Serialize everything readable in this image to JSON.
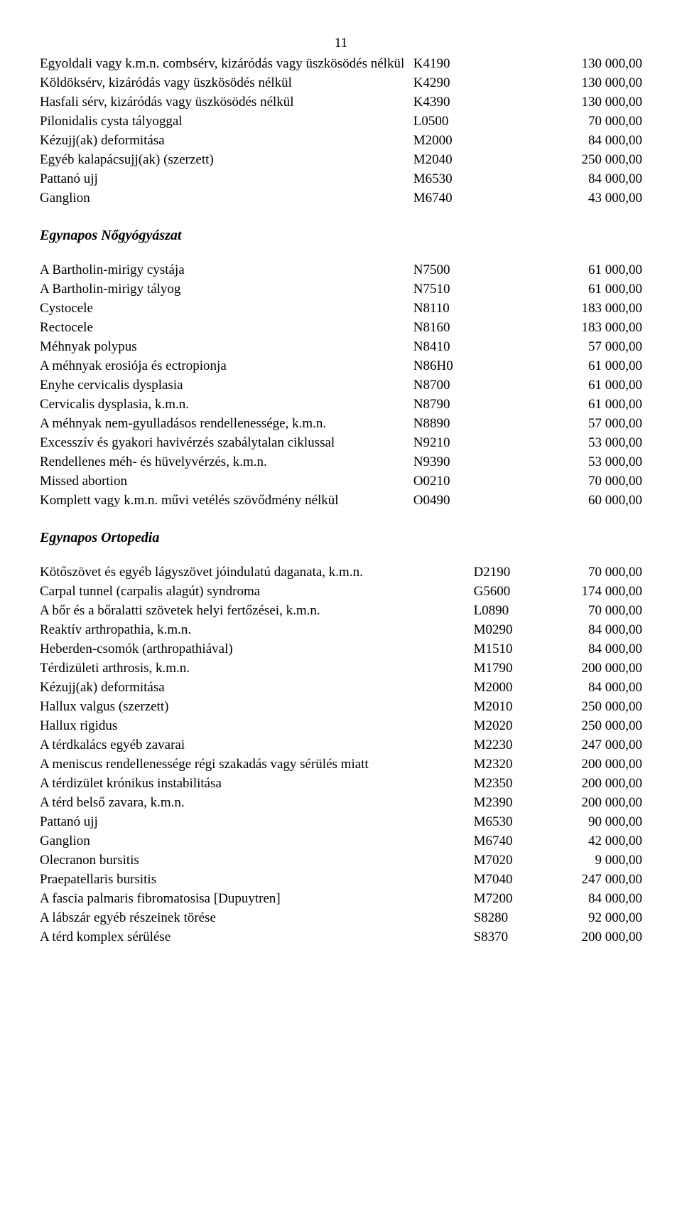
{
  "page_number": "11",
  "sections": {
    "top": {
      "rows": [
        {
          "label": "Egyoldali vagy k.m.n. combsérv, kizáródás vagy üszkösödés nélkül",
          "code": "K4190",
          "price": "130 000,00"
        },
        {
          "label": "Köldöksérv, kizáródás vagy üszkösödés nélkül",
          "code": "K4290",
          "price": "130 000,00"
        },
        {
          "label": "Hasfali sérv, kizáródás vagy üszkösödés nélkül",
          "code": "K4390",
          "price": "130 000,00"
        },
        {
          "label": "Pilonidalis cysta tályoggal",
          "code": "L0500",
          "price": "70 000,00"
        },
        {
          "label": "Kézujj(ak) deformitása",
          "code": "M2000",
          "price": "84 000,00"
        },
        {
          "label": "Egyéb kalapácsujj(ak) (szerzett)",
          "code": "M2040",
          "price": "250 000,00"
        },
        {
          "label": "Pattanó ujj",
          "code": "M6530",
          "price": "84 000,00"
        },
        {
          "label": "Ganglion",
          "code": "M6740",
          "price": "43 000,00"
        }
      ]
    },
    "gyneco": {
      "title": "Egynapos Nőgyógyászat",
      "rows": [
        {
          "label": "A Bartholin-mirigy cystája",
          "code": "N7500",
          "price": "61 000,00"
        },
        {
          "label": "A Bartholin-mirigy tályog",
          "code": "N7510",
          "price": "61 000,00"
        },
        {
          "label": "Cystocele",
          "code": "N8110",
          "price": "183 000,00"
        },
        {
          "label": "Rectocele",
          "code": "N8160",
          "price": "183 000,00"
        },
        {
          "label": "Méhnyak polypus",
          "code": "N8410",
          "price": "57 000,00"
        },
        {
          "label": "A méhnyak erosiója és ectropionja",
          "code": "N86H0",
          "price": "61 000,00"
        },
        {
          "label": "Enyhe cervicalis dysplasia",
          "code": "N8700",
          "price": "61 000,00"
        },
        {
          "label": "Cervicalis dysplasia, k.m.n.",
          "code": "N8790",
          "price": "61 000,00"
        },
        {
          "label": "A méhnyak nem-gyulladásos rendellenessége, k.m.n.",
          "code": "N8890",
          "price": "57 000,00"
        },
        {
          "label": "Excesszív és gyakori havivérzés szabálytalan ciklussal",
          "code": "N9210",
          "price": "53 000,00"
        },
        {
          "label": "Rendellenes méh- és hüvelyvérzés, k.m.n.",
          "code": "N9390",
          "price": "53 000,00"
        },
        {
          "label": "Missed abortion",
          "code": "O0210",
          "price": "70 000,00"
        },
        {
          "label": "Komplett vagy k.m.n. művi vetélés szövődmény nélkül",
          "code": "O0490",
          "price": "60 000,00"
        }
      ]
    },
    "ortho": {
      "title": "Egynapos Ortopedia",
      "rows": [
        {
          "label": "Kötőszövet és egyéb lágyszövet jóindulatú daganata, k.m.n.",
          "code": "D2190",
          "price": "70 000,00"
        },
        {
          "label": "Carpal tunnel (carpalis alagút) syndroma",
          "code": "G5600",
          "price": "174 000,00"
        },
        {
          "label": "A bőr és a bőralatti szövetek helyi fertőzései, k.m.n.",
          "code": "L0890",
          "price": "70 000,00"
        },
        {
          "label": "Reaktív arthropathia, k.m.n.",
          "code": "M0290",
          "price": "84 000,00"
        },
        {
          "label": "Heberden-csomók (arthropathiával)",
          "code": "M1510",
          "price": "84 000,00"
        },
        {
          "label": "Térdizületi arthrosis, k.m.n.",
          "code": "M1790",
          "price": "200 000,00"
        },
        {
          "label": "Kézujj(ak) deformitása",
          "code": "M2000",
          "price": "84 000,00"
        },
        {
          "label": "Hallux valgus (szerzett)",
          "code": "M2010",
          "price": "250 000,00"
        },
        {
          "label": "Hallux rigidus",
          "code": "M2020",
          "price": "250 000,00"
        },
        {
          "label": "A térdkalács egyéb zavarai",
          "code": "M2230",
          "price": "247 000,00"
        },
        {
          "label": "A meniscus rendellenessége régi szakadás vagy sérülés miatt",
          "code": "M2320",
          "price": "200 000,00"
        },
        {
          "label": "A térdizület krónikus instabilitása",
          "code": "M2350",
          "price": "200 000,00"
        },
        {
          "label": "A térd belső zavara, k.m.n.",
          "code": "M2390",
          "price": "200 000,00"
        },
        {
          "label": "Pattanó ujj",
          "code": "M6530",
          "price": "90 000,00"
        },
        {
          "label": "Ganglion",
          "code": "M6740",
          "price": "42 000,00"
        },
        {
          "label": "Olecranon bursitis",
          "code": "M7020",
          "price": "9 000,00"
        },
        {
          "label": "Praepatellaris bursitis",
          "code": "M7040",
          "price": "247 000,00"
        },
        {
          "label": "A fascia palmaris fibromatosisa [Dupuytren]",
          "code": "M7200",
          "price": "84 000,00"
        },
        {
          "label": "A lábszár egyéb részeinek törése",
          "code": "S8280",
          "price": "92 000,00"
        },
        {
          "label": "A térd komplex sérülése",
          "code": "S8370",
          "price": "200 000,00"
        }
      ]
    }
  }
}
